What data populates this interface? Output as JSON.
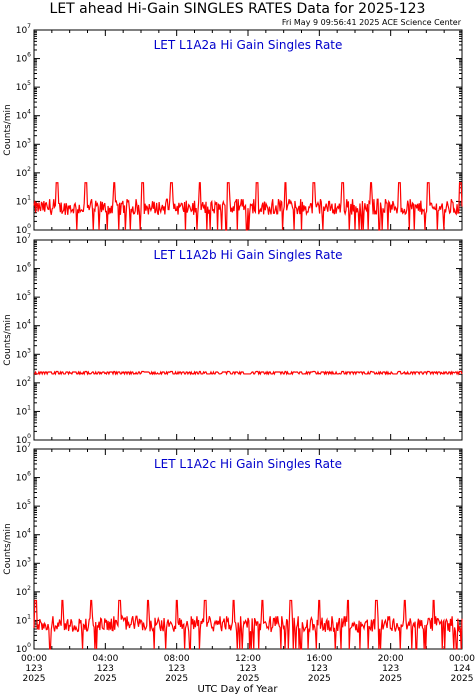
{
  "header": {
    "title": "LET ahead Hi-Gain SINGLES RATES Data for 2025-123",
    "timestamp": "Fri May  9 09:56:41 2025 ACE Science Center"
  },
  "xaxis": {
    "label": "UTC Day of Year",
    "ticks": [
      {
        "time": "00:00",
        "day": "123",
        "year": "2025"
      },
      {
        "time": "04:00",
        "day": "123",
        "year": "2025"
      },
      {
        "time": "08:00",
        "day": "123",
        "year": "2025"
      },
      {
        "time": "12:00",
        "day": "123",
        "year": "2025"
      },
      {
        "time": "16:00",
        "day": "123",
        "year": "2025"
      },
      {
        "time": "20:00",
        "day": "123",
        "year": "2025"
      },
      {
        "time": "00:00",
        "day": "124",
        "year": "2025"
      }
    ]
  },
  "colors": {
    "series": "#ff0000",
    "panel_title": "#0000cc",
    "axis": "#000000"
  },
  "chart_data": [
    {
      "type": "line",
      "title": "LET L1A2a Hi Gain Singles Rate",
      "ylabel": "Counts/min",
      "yscale": "log",
      "ylim": [
        1,
        10000000
      ],
      "xlim_hours": [
        0,
        24
      ],
      "series": [
        {
          "baseline_counts_per_min": 6,
          "noise_range_counts_per_min": [
            1,
            12
          ],
          "spike_counts_per_min": 45,
          "spike_times_hours": [
            1.3,
            2.9,
            4.5,
            6.1,
            7.7,
            9.3,
            10.9,
            12.5,
            14.1,
            15.7,
            17.3,
            18.9,
            20.5,
            22.1,
            23.9
          ]
        }
      ]
    },
    {
      "type": "line",
      "title": "LET L1A2b Hi Gain Singles Rate",
      "ylabel": "Counts/min",
      "yscale": "log",
      "ylim": [
        1,
        10000000
      ],
      "xlim_hours": [
        0,
        24
      ],
      "series": [
        {
          "baseline_counts_per_min": 220,
          "noise_range_counts_per_min": [
            205,
            240
          ],
          "spike_counts_per_min": 250,
          "spike_times_hours": [
            1.3,
            2.9,
            4.5,
            6.1,
            7.7,
            9.3,
            10.9,
            12.5,
            14.1,
            15.7,
            17.3,
            18.9,
            20.5,
            22.1,
            23.9
          ]
        }
      ]
    },
    {
      "type": "line",
      "title": "LET L1A2c Hi Gain Singles Rate",
      "ylabel": "Counts/min",
      "yscale": "log",
      "ylim": [
        1,
        10000000
      ],
      "xlim_hours": [
        0,
        24
      ],
      "series": [
        {
          "baseline_counts_per_min": 7,
          "noise_range_counts_per_min": [
            1,
            14
          ],
          "spike_counts_per_min": 50,
          "spike_times_hours": [
            0.1,
            1.6,
            3.2,
            4.8,
            6.4,
            8.0,
            9.6,
            11.2,
            12.8,
            14.4,
            16.0,
            17.6,
            19.2,
            20.8,
            22.4
          ]
        }
      ]
    }
  ]
}
